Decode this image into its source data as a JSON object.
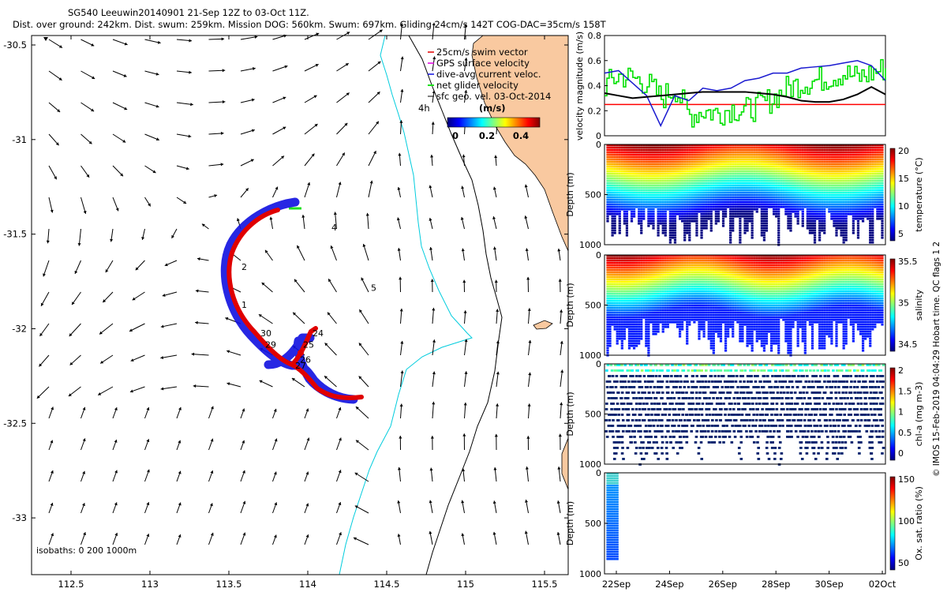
{
  "header": {
    "line1": "SG540 Leeuwin20140901 21-Sep 12Z to 03-Oct 11Z.",
    "line2": "Dist. over ground: 242km. Dist. swum: 259km. Mission DOG: 560km. Swum: 697km. Gliding 24cm/s 142T COG-DAC=35cm/s 158T"
  },
  "footer_note": "© IMOS 15-Feb-2019 04:04:29 Hobart time. QC flags 1  2",
  "colors": {
    "land": "#f9c9a0",
    "track_red": "#e00000",
    "track_blue": "#1010e0",
    "net_green": "#20e020",
    "isobath_200": "#00ccdd",
    "isobath_1000": "#000000",
    "vel_red_line": "#ff0000",
    "vel_green": "#00e000",
    "vel_blue": "#1a1ad0",
    "vel_black": "#000000"
  },
  "chart_data": [
    {
      "type": "scatter",
      "name": "map",
      "xticks": [
        "112.5",
        "113",
        "113.5",
        "114",
        "114.5",
        "115",
        "115.5"
      ],
      "yticks": [
        "-30.5",
        "-31",
        "-31.5",
        "-32",
        "-32.5",
        "-33"
      ],
      "xlim": [
        112.25,
        115.65
      ],
      "ylim": [
        -33.3,
        -30.45
      ],
      "legend": {
        "items": [
          "25cm/s swim vector",
          "GPS surface velocity",
          "dive-avg current veloc.",
          "net glider velocity",
          "sfc geo. vel. 03-Oct-2014"
        ],
        "colors": [
          "#e00000",
          "#e000e0",
          "#1010e0",
          "#20e020",
          "#000000"
        ],
        "scale_label": "4h",
        "colorbar_title": "(m/s)",
        "colorbar_ticks": [
          "0",
          "0.2",
          "0.4"
        ]
      },
      "isobath_label": "isobaths: 0   200  1000m",
      "day_labels": [
        {
          "text": "1",
          "lon": 113.58,
          "lat": -31.89
        },
        {
          "text": "2",
          "lon": 113.58,
          "lat": -31.69
        },
        {
          "text": "4",
          "lon": 114.15,
          "lat": -31.48
        },
        {
          "text": "5",
          "lon": 114.4,
          "lat": -31.8
        },
        {
          "text": "24",
          "lon": 114.03,
          "lat": -32.04
        },
        {
          "text": "25",
          "lon": 113.97,
          "lat": -32.1
        },
        {
          "text": "26",
          "lon": 113.95,
          "lat": -32.18
        },
        {
          "text": "27",
          "lon": 113.92,
          "lat": -32.21
        },
        {
          "text": "29",
          "lon": 113.73,
          "lat": -32.1
        },
        {
          "text": "30",
          "lon": 113.7,
          "lat": -32.04
        }
      ]
    },
    {
      "type": "line",
      "name": "velocity",
      "ylabel": "velocity magnitude (m/s)",
      "yticks": [
        "0",
        "0.2",
        "0.4",
        "0.6",
        "0.8"
      ],
      "ylim": [
        0,
        0.8
      ],
      "reference_line": 0.25,
      "x": [
        0,
        0.05,
        0.1,
        0.15,
        0.2,
        0.25,
        0.3,
        0.35,
        0.4,
        0.45,
        0.5,
        0.55,
        0.6,
        0.65,
        0.7,
        0.75,
        0.8,
        0.85,
        0.9,
        0.95,
        1
      ],
      "series": [
        {
          "values": [
            0.4,
            0.48,
            0.46,
            0.42,
            0.3,
            0.38,
            0.16,
            0.2,
            0.18,
            0.22,
            0.2,
            0.24,
            0.3,
            0.38,
            0.42,
            0.44,
            0.47,
            0.5,
            0.46,
            0.5,
            0.54
          ]
        },
        {
          "values": [
            0.5,
            0.52,
            0.42,
            0.32,
            0.08,
            0.32,
            0.28,
            0.38,
            0.36,
            0.38,
            0.44,
            0.46,
            0.5,
            0.5,
            0.54,
            0.55,
            0.56,
            0.58,
            0.6,
            0.56,
            0.44
          ]
        },
        {
          "values": [
            0.34,
            0.32,
            0.3,
            0.31,
            0.32,
            0.33,
            0.34,
            0.35,
            0.35,
            0.35,
            0.35,
            0.34,
            0.33,
            0.31,
            0.28,
            0.27,
            0.27,
            0.29,
            0.33,
            0.39,
            0.33
          ]
        }
      ]
    },
    {
      "type": "heatmap",
      "name": "temperature",
      "ylabel": "Depth (m)",
      "cbar_label": "temperature (°C)",
      "cbar_ticks": [
        "5",
        "10",
        "15",
        "20"
      ],
      "yticks": [
        "0",
        "500",
        "1000"
      ]
    },
    {
      "type": "heatmap",
      "name": "salinity",
      "ylabel": "Depth (m)",
      "cbar_label": "salinity",
      "cbar_ticks": [
        "34.5",
        "35",
        "35.5"
      ],
      "yticks": [
        "0",
        "500",
        "1000"
      ]
    },
    {
      "type": "heatmap",
      "name": "chla",
      "ylabel": "Depth (m)",
      "cbar_label": "chl-a (mg m-3)",
      "cbar_ticks": [
        "0",
        "0.5",
        "1",
        "1.5",
        "2"
      ],
      "yticks": [
        "0",
        "500",
        "1000"
      ]
    },
    {
      "type": "heatmap",
      "name": "oxygen",
      "ylabel": "Depth (m)",
      "cbar_label": "Ox. sat. ratio (%)",
      "cbar_ticks": [
        "50",
        "100",
        "150"
      ],
      "yticks": [
        "0",
        "500",
        "1000"
      ],
      "xticks": [
        "22Sep",
        "24Sep",
        "26Sep",
        "28Sep",
        "30Sep",
        "02Oct"
      ]
    }
  ]
}
